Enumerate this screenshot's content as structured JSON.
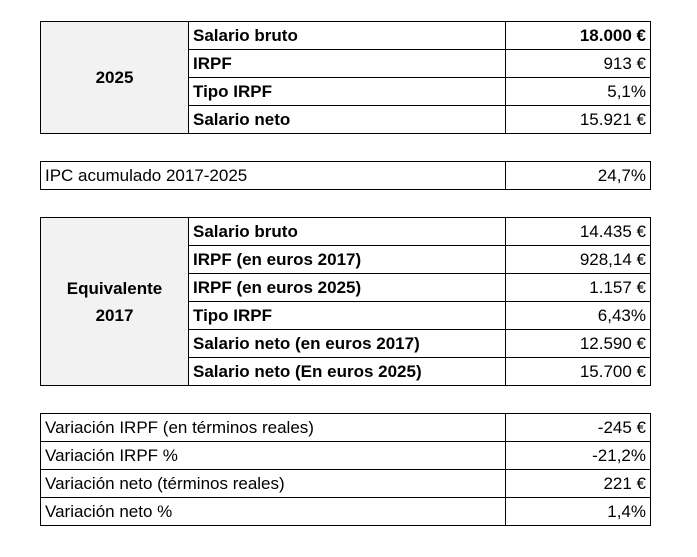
{
  "block_2025": {
    "year": "2025",
    "rows": [
      {
        "label": "Salario bruto",
        "value": "18.000 €"
      },
      {
        "label": "IRPF",
        "value": "913 €"
      },
      {
        "label": "Tipo IRPF",
        "value": "5,1%"
      },
      {
        "label": "Salario neto",
        "value": "15.921 €"
      }
    ]
  },
  "ipc": {
    "label": "IPC acumulado 2017-2025",
    "value": "24,7%"
  },
  "block_2017": {
    "title_line1": "Equivalente",
    "title_line2": "2017",
    "rows": [
      {
        "label": "Salario bruto",
        "value": "14.435 €"
      },
      {
        "label": "IRPF (en euros 2017)",
        "value": "928,14 €"
      },
      {
        "label": "IRPF (en euros 2025)",
        "value": "1.157 €"
      },
      {
        "label": "Tipo IRPF",
        "value": "6,43%"
      },
      {
        "label": "Salario neto (en euros 2017)",
        "value": "12.590 €"
      },
      {
        "label": "Salario neto (En euros 2025)",
        "value": "15.700 €"
      }
    ]
  },
  "variations": [
    {
      "label": "Variación IRPF (en términos reales)",
      "value": "-245 €"
    },
    {
      "label": "Variación IRPF %",
      "value": "-21,2%"
    },
    {
      "label": "Variación neto (términos reales)",
      "value": "221 €"
    },
    {
      "label": "Variación neto %",
      "value": "1,4%"
    }
  ]
}
